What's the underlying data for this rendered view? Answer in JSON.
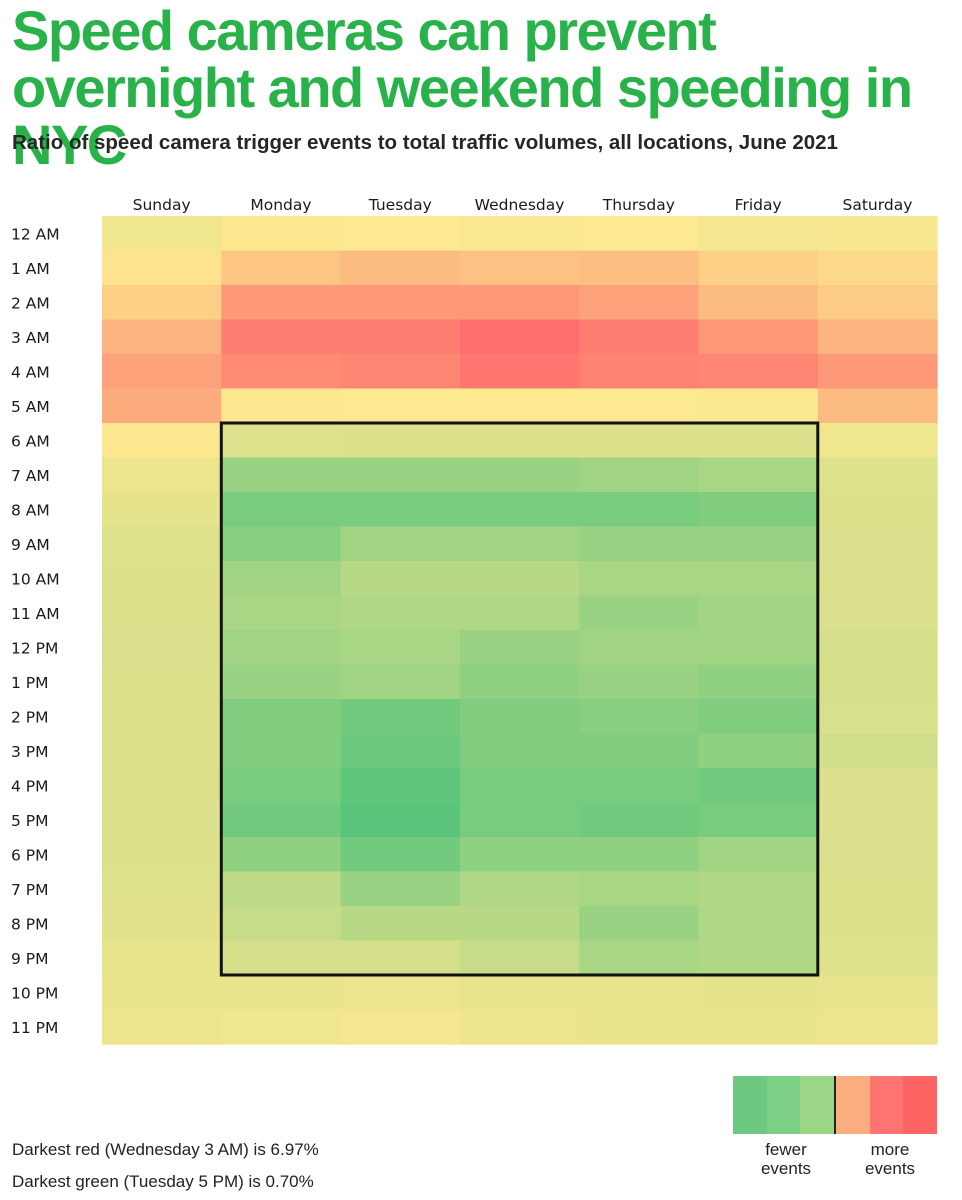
{
  "title": "Speed cameras can prevent overnight and weekend speeding in NYC",
  "subtitle": "Ratio of speed camera trigger events to total traffic volumes, all locations, June 2021",
  "chart_data": {
    "type": "heatmap",
    "x_categories": [
      "Sunday",
      "Monday",
      "Tuesday",
      "Wednesday",
      "Thursday",
      "Friday",
      "Saturday"
    ],
    "y_categories": [
      "12 AM",
      "1 AM",
      "2 AM",
      "3 AM",
      "4 AM",
      "5 AM",
      "6 AM",
      "7 AM",
      "8 AM",
      "9 AM",
      "10 AM",
      "11 AM",
      "12 PM",
      "1 PM",
      "2 PM",
      "3 PM",
      "4 PM",
      "5 PM",
      "6 PM",
      "7 PM",
      "8 PM",
      "9 PM",
      "10 PM",
      "11 PM"
    ],
    "value_range_percent": [
      0.7,
      6.97
    ],
    "values_percent": [
      [
        3.3,
        3.9,
        3.8,
        3.7,
        3.8,
        3.5,
        3.6
      ],
      [
        4.0,
        4.9,
        5.2,
        5.0,
        5.1,
        4.6,
        4.3
      ],
      [
        4.6,
        6.0,
        6.0,
        6.0,
        5.8,
        5.2,
        4.7
      ],
      [
        5.4,
        6.6,
        6.6,
        6.97,
        6.6,
        6.0,
        5.4
      ],
      [
        5.8,
        6.3,
        6.4,
        6.8,
        6.5,
        6.4,
        6.0
      ],
      [
        5.6,
        3.9,
        3.8,
        3.8,
        3.8,
        3.7,
        5.2
      ],
      [
        3.9,
        2.7,
        2.6,
        2.6,
        2.6,
        2.6,
        3.3
      ],
      [
        3.2,
        1.5,
        1.5,
        1.5,
        1.6,
        1.7,
        2.7
      ],
      [
        2.9,
        1.1,
        1.1,
        1.1,
        1.1,
        1.2,
        2.6
      ],
      [
        2.7,
        1.3,
        1.6,
        1.6,
        1.5,
        1.5,
        2.5
      ],
      [
        2.6,
        1.6,
        1.9,
        1.9,
        1.7,
        1.7,
        2.5
      ],
      [
        2.6,
        1.7,
        1.8,
        1.8,
        1.5,
        1.6,
        2.5
      ],
      [
        2.5,
        1.6,
        1.7,
        1.5,
        1.6,
        1.6,
        2.3
      ],
      [
        2.6,
        1.5,
        1.6,
        1.4,
        1.5,
        1.4,
        2.3
      ],
      [
        2.6,
        1.2,
        1.0,
        1.2,
        1.3,
        1.2,
        2.4
      ],
      [
        2.6,
        1.2,
        0.95,
        1.2,
        1.2,
        1.4,
        2.2
      ],
      [
        2.6,
        1.1,
        0.75,
        1.1,
        1.1,
        1.0,
        2.5
      ],
      [
        2.6,
        1.0,
        0.7,
        1.1,
        1.0,
        1.1,
        2.5
      ],
      [
        2.6,
        1.4,
        1.0,
        1.4,
        1.4,
        1.6,
        2.5
      ],
      [
        2.7,
        2.0,
        1.5,
        1.8,
        1.7,
        1.8,
        2.6
      ],
      [
        2.8,
        2.1,
        1.9,
        1.9,
        1.5,
        1.8,
        2.6
      ],
      [
        3.0,
        2.3,
        2.3,
        2.1,
        1.7,
        1.8,
        2.7
      ],
      [
        3.1,
        3.1,
        3.2,
        3.0,
        3.0,
        2.9,
        3.0
      ],
      [
        3.2,
        3.3,
        3.5,
        3.2,
        3.1,
        3.1,
        3.2
      ]
    ],
    "color_scale": [
      "#5ac57a",
      "#d4df8a",
      "#fde990",
      "#fcb47e",
      "#ff6e6e"
    ],
    "highlight_box": {
      "days": [
        "Monday",
        "Friday"
      ],
      "hours": [
        "6 AM",
        "9 PM"
      ]
    },
    "legend": {
      "swatches": [
        "#6cc97f",
        "#7ccf85",
        "#9ad685",
        "#fbad80",
        "#ff7373",
        "#ff6464"
      ],
      "low_label": "fewer events",
      "high_label": "more events"
    }
  },
  "notes": [
    "Darkest red (Wednesday 3 AM) is 6.97%",
    "Darkest green (Tuesday 5 PM) is 0.70%"
  ]
}
